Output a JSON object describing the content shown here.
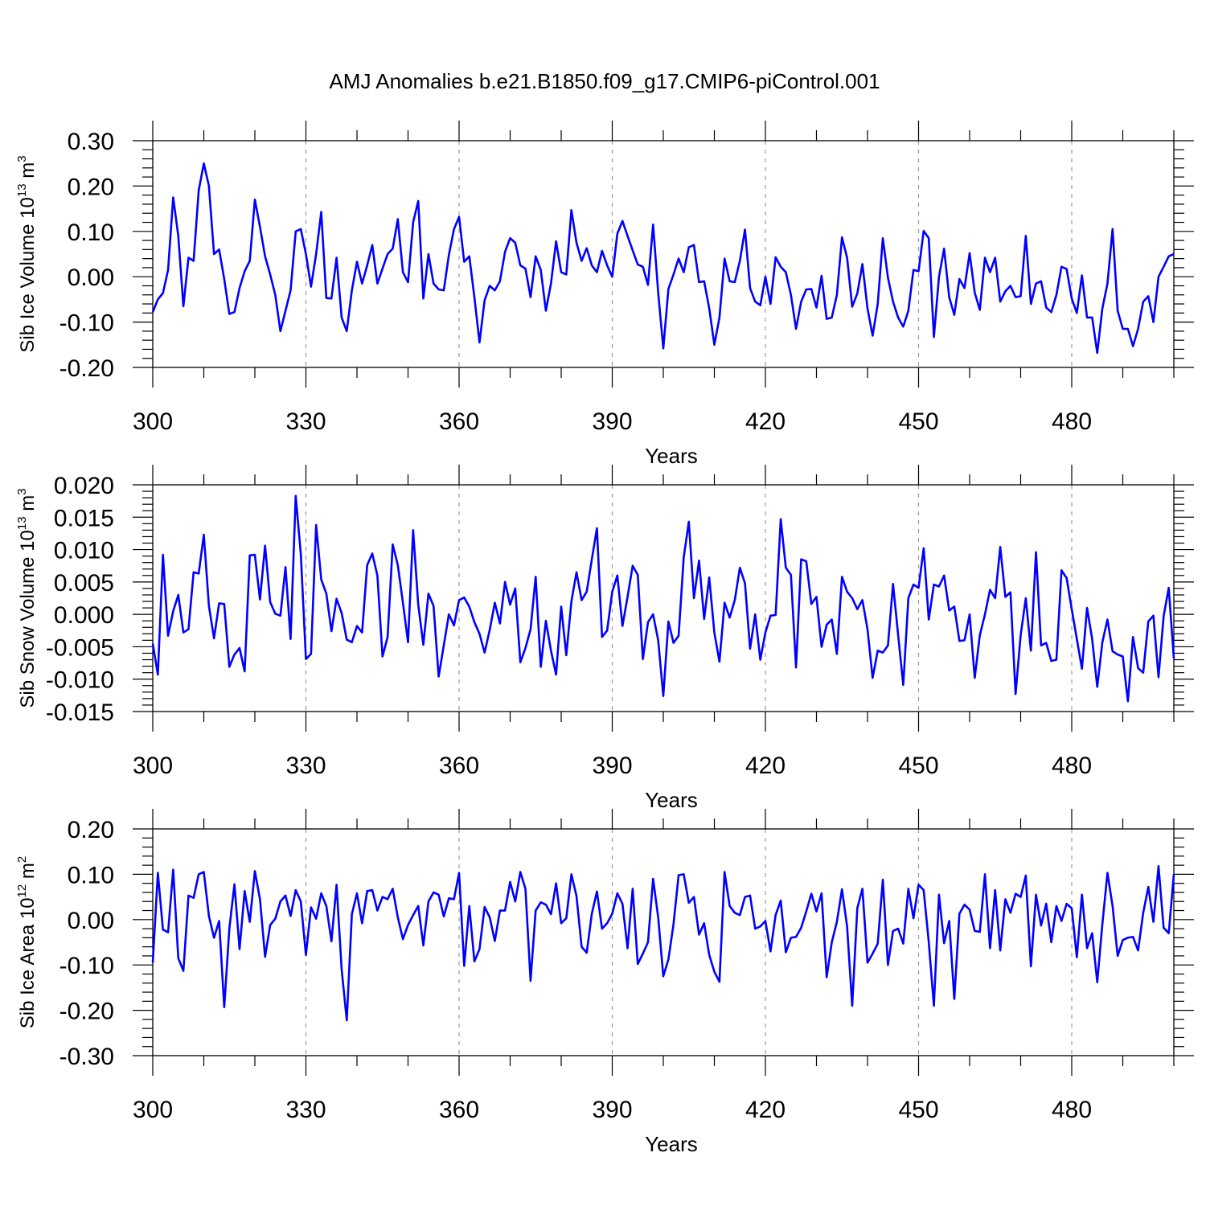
{
  "title": "AMJ Anomalies b.e21.B1850.f09_g17.CMIP6-piControl.001",
  "chart_data": [
    {
      "type": "line",
      "title": "AMJ Anomalies b.e21.B1850.f09_g17.CMIP6-piControl.001",
      "xlabel": "Years",
      "ylabel": {
        "text": "Sib Ice Volume 10",
        "exp": "13",
        "unit_text": " m",
        "unit_exp": "3"
      },
      "xlim": [
        300,
        500
      ],
      "ylim": [
        -0.2,
        0.3
      ],
      "x_ticks": [
        300,
        330,
        360,
        390,
        420,
        450,
        480
      ],
      "x_tick_labels": [
        "300",
        "330",
        "360",
        "390",
        "420",
        "450",
        "480"
      ],
      "y_ticks": [
        -0.2,
        -0.1,
        0.0,
        0.1,
        0.2,
        0.3
      ],
      "y_tick_labels": [
        "-0.20",
        "-0.10",
        "0.00",
        "0.10",
        "0.20",
        "0.30"
      ],
      "grid": "vertical dashed at major x ticks",
      "color": "#0000ff",
      "series": [
        {
          "x_start": 300,
          "x_step": 1,
          "values": [
            -0.078,
            -0.05,
            -0.036,
            0.015,
            0.175,
            0.09,
            -0.065,
            0.042,
            0.035,
            0.19,
            0.25,
            0.2,
            0.05,
            0.06,
            -0.005,
            -0.082,
            -0.078,
            -0.025,
            0.012,
            0.035,
            0.17,
            0.11,
            0.045,
            0.005,
            -0.04,
            -0.12,
            -0.075,
            -0.03,
            0.1,
            0.105,
            0.05,
            -0.022,
            0.05,
            0.143,
            -0.047,
            -0.048,
            0.042,
            -0.09,
            -0.12,
            -0.03,
            0.033,
            -0.015,
            0.025,
            0.07,
            -0.015,
            0.018,
            0.05,
            0.062,
            0.127,
            0.01,
            -0.012,
            0.12,
            0.167,
            -0.048,
            0.05,
            -0.015,
            -0.028,
            -0.03,
            0.048,
            0.105,
            0.132,
            0.033,
            0.045,
            -0.045,
            -0.145,
            -0.052,
            -0.02,
            -0.03,
            -0.01,
            0.055,
            0.085,
            0.075,
            0.025,
            0.018,
            -0.045,
            0.045,
            0.015,
            -0.075,
            -0.015,
            0.078,
            0.01,
            0.005,
            0.147,
            0.075,
            0.035,
            0.063,
            0.025,
            0.01,
            0.057,
            0.025,
            0.0,
            0.095,
            0.123,
            0.09,
            0.058,
            0.027,
            0.022,
            -0.018,
            0.115,
            -0.035,
            -0.158,
            -0.027,
            0.005,
            0.04,
            0.01,
            0.065,
            0.07,
            -0.012,
            -0.01,
            -0.07,
            -0.15,
            -0.09,
            0.04,
            -0.01,
            -0.012,
            0.035,
            0.104,
            -0.025,
            -0.055,
            -0.063,
            0.0,
            -0.06,
            0.043,
            0.022,
            0.01,
            -0.04,
            -0.115,
            -0.055,
            -0.028,
            -0.027,
            -0.068,
            0.002,
            -0.093,
            -0.09,
            -0.04,
            0.087,
            0.042,
            -0.066,
            -0.037,
            0.028,
            -0.07,
            -0.13,
            -0.06,
            0.085,
            -0.002,
            -0.055,
            -0.09,
            -0.11,
            -0.075,
            0.015,
            0.012,
            0.101,
            0.085,
            -0.133,
            0.0,
            0.062,
            -0.045,
            -0.084,
            -0.005,
            -0.025,
            0.052,
            -0.035,
            -0.073,
            0.042,
            0.01,
            0.042,
            -0.055,
            -0.032,
            -0.02,
            -0.045,
            -0.043,
            0.09,
            -0.06,
            -0.015,
            -0.01,
            -0.068,
            -0.078,
            -0.04,
            0.022,
            0.017,
            -0.048,
            -0.08,
            0.003,
            -0.09,
            -0.09,
            -0.168,
            -0.07,
            -0.015,
            0.105,
            -0.075,
            -0.115,
            -0.115,
            -0.153,
            -0.115,
            -0.055,
            -0.043,
            -0.1,
            0.0,
            0.022,
            0.045,
            0.05
          ]
        }
      ]
    },
    {
      "type": "line",
      "xlabel": "Years",
      "ylabel": {
        "text": "Sib Snow Volume 10",
        "exp": "13",
        "unit_text": " m",
        "unit_exp": "3"
      },
      "xlim": [
        300,
        500
      ],
      "ylim": [
        -0.015,
        0.02
      ],
      "x_ticks": [
        300,
        330,
        360,
        390,
        420,
        450,
        480
      ],
      "x_tick_labels": [
        "300",
        "330",
        "360",
        "390",
        "420",
        "450",
        "480"
      ],
      "y_ticks": [
        -0.015,
        -0.01,
        -0.005,
        0.0,
        0.005,
        0.01,
        0.015,
        0.02
      ],
      "y_tick_labels": [
        "-0.015",
        "-0.010",
        "-0.005",
        "0.000",
        "0.005",
        "0.010",
        "0.015",
        "0.020"
      ],
      "grid": "vertical dashed at major x ticks",
      "color": "#0000ff",
      "series": [
        {
          "x_start": 300,
          "x_step": 1,
          "values": [
            -0.0045,
            -0.0093,
            0.0092,
            -0.0033,
            0.0005,
            0.003,
            -0.0028,
            -0.0023,
            0.0065,
            0.0063,
            0.0123,
            0.0013,
            -0.0037,
            0.0017,
            0.0016,
            -0.0081,
            -0.0062,
            -0.0052,
            -0.0088,
            0.0091,
            0.0092,
            0.0023,
            0.0106,
            0.0019,
            0.0001,
            -0.0002,
            0.0073,
            -0.0038,
            0.0183,
            0.0093,
            -0.0069,
            -0.0061,
            0.0138,
            0.0054,
            0.0032,
            -0.0026,
            0.0024,
            0.0002,
            -0.0039,
            -0.0043,
            -0.0018,
            -0.0028,
            0.0076,
            0.0094,
            0.006,
            -0.0065,
            -0.0035,
            0.0108,
            0.0076,
            0.0018,
            -0.0043,
            0.013,
            0.0015,
            -0.0047,
            0.0032,
            0.0013,
            -0.0096,
            -0.0048,
            0.0,
            -0.0017,
            0.0022,
            0.0026,
            0.0012,
            -0.0012,
            -0.003,
            -0.0059,
            -0.0024,
            0.0018,
            -0.0014,
            0.005,
            0.0015,
            0.004,
            -0.0074,
            -0.0052,
            -0.0023,
            0.0058,
            -0.0081,
            -0.001,
            -0.0056,
            -0.0093,
            0.0012,
            -0.0063,
            0.002,
            0.0065,
            0.0022,
            0.0035,
            0.0085,
            0.0133,
            -0.0035,
            -0.0025,
            0.0035,
            0.006,
            -0.0018,
            0.0027,
            0.0075,
            0.0061,
            -0.0069,
            -0.0012,
            0.0,
            -0.004,
            -0.0126,
            -0.0011,
            -0.0044,
            -0.0033,
            0.0088,
            0.0143,
            0.0025,
            0.0083,
            -0.0007,
            0.0057,
            -0.0028,
            -0.0073,
            0.0018,
            -0.0005,
            0.0022,
            0.0072,
            0.0048,
            -0.0053,
            0.0,
            -0.007,
            -0.0028,
            -0.0002,
            -0.0001,
            0.0147,
            0.0072,
            0.0061,
            -0.0082,
            0.0085,
            0.0082,
            0.0016,
            0.0027,
            -0.005,
            -0.0016,
            -0.0008,
            -0.0061,
            0.0058,
            0.0035,
            0.0025,
            0.0008,
            0.0022,
            -0.0023,
            -0.0098,
            -0.0056,
            -0.0059,
            -0.0048,
            0.0047,
            -0.0032,
            -0.0109,
            0.0025,
            0.0046,
            0.0041,
            0.0102,
            -0.0008,
            0.0046,
            0.0043,
            0.006,
            0.0006,
            0.0012,
            -0.0041,
            -0.004,
            0.0,
            -0.0098,
            -0.0032,
            0.0,
            0.0038,
            0.0025,
            0.0104,
            0.0027,
            0.0034,
            -0.0123,
            -0.0032,
            0.0025,
            -0.0056,
            0.0096,
            -0.0048,
            -0.0044,
            -0.0072,
            -0.007,
            0.0068,
            0.0056,
            0.0008,
            -0.0038,
            -0.0084,
            0.001,
            -0.0038,
            -0.0112,
            -0.0043,
            -0.0008,
            -0.0057,
            -0.0062,
            -0.0065,
            -0.0134,
            -0.0035,
            -0.0083,
            -0.009,
            -0.0011,
            -0.0002,
            -0.0097,
            -0.0003,
            0.0041,
            -0.0068
          ]
        }
      ]
    },
    {
      "type": "line",
      "xlabel": "Years",
      "ylabel": {
        "text": "Sib Ice Area 10",
        "exp": "12",
        "unit_text": " m",
        "unit_exp": "2"
      },
      "xlim": [
        300,
        500
      ],
      "ylim": [
        -0.3,
        0.2
      ],
      "x_ticks": [
        300,
        330,
        360,
        390,
        420,
        450,
        480
      ],
      "x_tick_labels": [
        "300",
        "330",
        "360",
        "390",
        "420",
        "450",
        "480"
      ],
      "y_ticks": [
        -0.3,
        -0.2,
        -0.1,
        0.0,
        0.1,
        0.2
      ],
      "y_tick_labels": [
        "-0.30",
        "-0.20",
        "-0.10",
        "0.00",
        "0.10",
        "0.20"
      ],
      "grid": "vertical dashed at major x ticks",
      "color": "#0000ff",
      "series": [
        {
          "x_start": 300,
          "x_step": 1,
          "values": [
            -0.095,
            0.103,
            -0.022,
            -0.028,
            0.11,
            -0.085,
            -0.113,
            0.053,
            0.048,
            0.1,
            0.105,
            0.008,
            -0.04,
            -0.003,
            -0.193,
            -0.02,
            0.078,
            -0.065,
            0.063,
            -0.005,
            0.107,
            0.045,
            -0.082,
            -0.012,
            0.002,
            0.04,
            0.053,
            0.008,
            0.065,
            0.04,
            -0.078,
            0.027,
            0.002,
            0.058,
            0.03,
            -0.048,
            0.077,
            -0.11,
            -0.222,
            0.012,
            0.058,
            -0.008,
            0.063,
            0.065,
            0.02,
            0.05,
            0.045,
            0.068,
            0.005,
            -0.043,
            -0.012,
            0.01,
            0.03,
            -0.057,
            0.04,
            0.06,
            0.055,
            0.007,
            0.047,
            0.045,
            0.103,
            -0.102,
            0.03,
            -0.092,
            -0.065,
            0.028,
            0.005,
            -0.047,
            0.02,
            0.02,
            0.083,
            0.04,
            0.105,
            0.068,
            -0.135,
            0.02,
            0.038,
            0.033,
            0.012,
            0.08,
            -0.008,
            0.003,
            0.1,
            0.052,
            -0.06,
            -0.073,
            0.013,
            0.062,
            -0.02,
            -0.008,
            0.013,
            0.058,
            0.035,
            -0.063,
            0.068,
            -0.098,
            -0.075,
            -0.05,
            0.09,
            0.005,
            -0.125,
            -0.088,
            -0.01,
            0.098,
            0.1,
            0.037,
            0.05,
            -0.033,
            -0.008,
            -0.078,
            -0.115,
            -0.137,
            0.105,
            0.03,
            0.015,
            0.01,
            0.05,
            0.053,
            -0.02,
            -0.015,
            -0.003,
            -0.07,
            0.01,
            0.042,
            -0.072,
            -0.04,
            -0.038,
            -0.018,
            0.018,
            0.057,
            0.018,
            0.058,
            -0.127,
            -0.05,
            -0.005,
            0.067,
            -0.015,
            -0.19,
            0.025,
            0.068,
            -0.095,
            -0.075,
            -0.053,
            0.088,
            -0.1,
            -0.025,
            -0.02,
            -0.053,
            0.068,
            0.003,
            0.077,
            0.065,
            -0.05,
            -0.19,
            0.055,
            -0.052,
            -0.003,
            -0.175,
            0.013,
            0.033,
            0.022,
            -0.025,
            -0.027,
            0.1,
            -0.063,
            0.065,
            -0.068,
            0.045,
            0.015,
            0.057,
            0.05,
            0.097,
            -0.103,
            0.055,
            -0.013,
            0.035,
            -0.05,
            0.03,
            -0.003,
            0.035,
            0.025,
            -0.083,
            0.055,
            -0.063,
            -0.03,
            -0.138,
            -0.01,
            0.103,
            0.03,
            -0.08,
            -0.045,
            -0.04,
            -0.038,
            -0.068,
            0.015,
            0.072,
            -0.005,
            0.118,
            -0.018,
            -0.03,
            0.1
          ]
        }
      ]
    }
  ]
}
